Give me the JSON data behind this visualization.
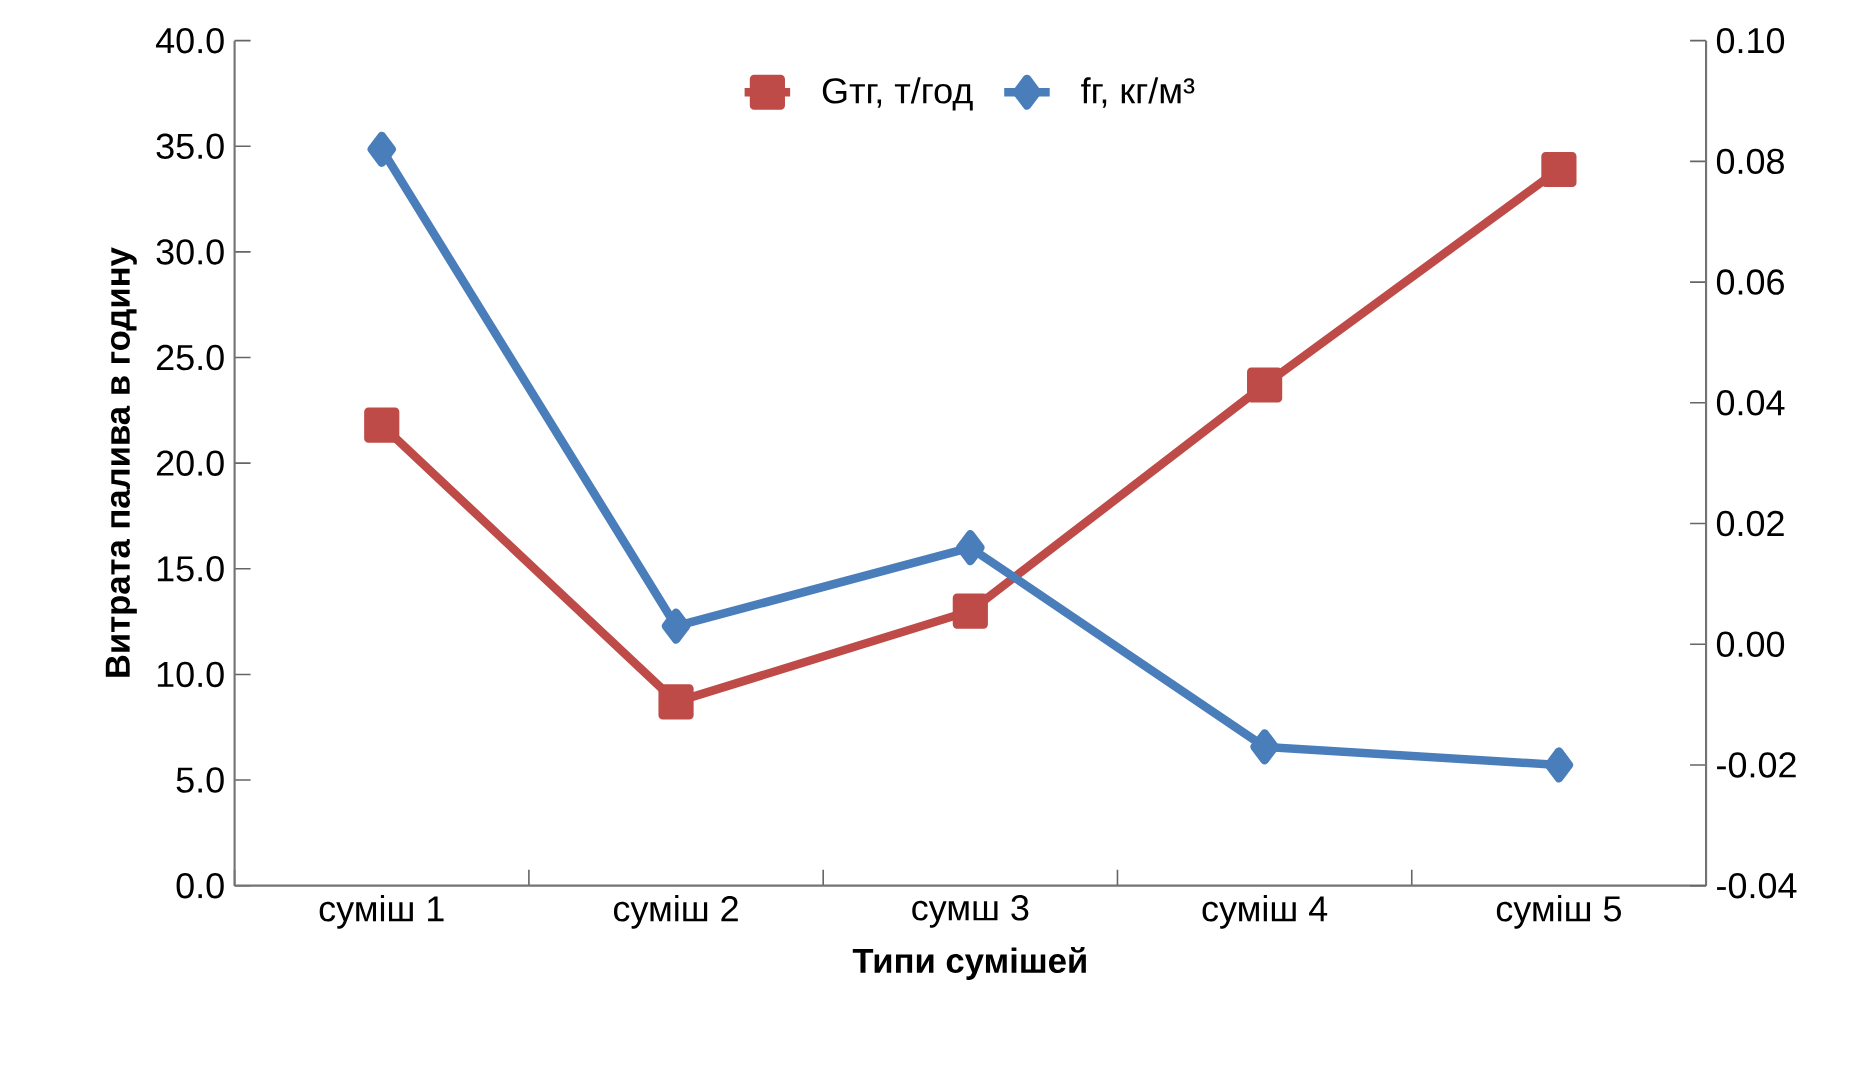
{
  "chart_data": {
    "type": "line",
    "xlabel": "Типи сумішей",
    "ylabel": "Витрата палива в годину",
    "categories": [
      "суміш 1",
      "суміш 2",
      "сумш 3",
      "суміш 4",
      "суміш 5"
    ],
    "series": [
      {
        "name": "Gтг, т/год",
        "color": "#be4b48",
        "marker": "square",
        "axis": "y",
        "values": [
          21.8,
          8.7,
          13.0,
          23.7,
          33.9
        ]
      },
      {
        "name": "fг, кг/м³",
        "color": "#4a7ebb",
        "marker": "diamond",
        "axis": "y2",
        "values": [
          0.082,
          0.003,
          0.016,
          -0.017,
          -0.02
        ]
      }
    ],
    "ylim": [
      0,
      40
    ],
    "yticks": [
      {
        "value": 0,
        "label": "0.0"
      },
      {
        "value": 5,
        "label": "5.0"
      },
      {
        "value": 10,
        "label": "10.0"
      },
      {
        "value": 15,
        "label": "15.0"
      },
      {
        "value": 20,
        "label": "20.0"
      },
      {
        "value": 25,
        "label": "25.0"
      },
      {
        "value": 30,
        "label": "30.0"
      },
      {
        "value": 35,
        "label": "35.0"
      },
      {
        "value": 40,
        "label": "40.0"
      }
    ],
    "y2lim": [
      -0.04,
      0.1
    ],
    "y2ticks": [
      {
        "value": -0.04,
        "label": "-0.04"
      },
      {
        "value": -0.02,
        "label": "-0.02"
      },
      {
        "value": 0,
        "label": "0.00"
      },
      {
        "value": 0.02,
        "label": "0.02"
      },
      {
        "value": 0.04,
        "label": "0.04"
      },
      {
        "value": 0.06,
        "label": "0.06"
      },
      {
        "value": 0.08,
        "label": "0.08"
      },
      {
        "value": 0.1,
        "label": "0.10"
      }
    ],
    "grid": false,
    "legend": "top",
    "line_style": "solid"
  }
}
